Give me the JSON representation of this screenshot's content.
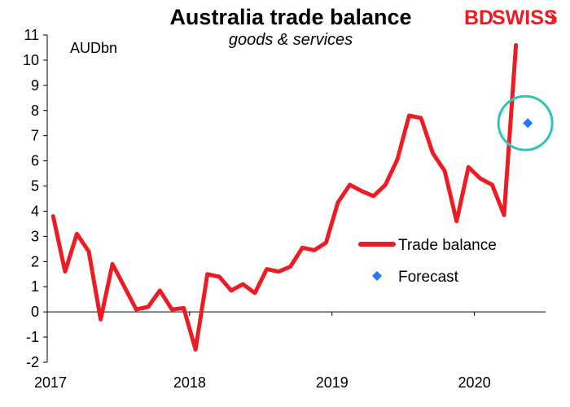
{
  "chart_data": {
    "type": "line",
    "title": "Australia  trade balance",
    "subtitle": "goods & services",
    "unit_label": "AUDbn",
    "xlabel": "",
    "ylabel": "",
    "ylim": [
      -2,
      11
    ],
    "yticks": [
      "11",
      "10",
      "9",
      "8",
      "7",
      "6",
      "5",
      "4",
      "3",
      "2",
      "1",
      "0",
      "-1",
      "-2"
    ],
    "xlim": [
      "2017-01",
      "2020-06"
    ],
    "xtick_labels": [
      "2017",
      "2018",
      "2019",
      "2020"
    ],
    "grid": false,
    "legend_position": "right",
    "series": [
      {
        "name": "Trade balance",
        "color": "#ed1c24",
        "x": [
          "2017-01",
          "2017-02",
          "2017-03",
          "2017-04",
          "2017-05",
          "2017-06",
          "2017-07",
          "2017-08",
          "2017-09",
          "2017-10",
          "2017-11",
          "2017-12",
          "2018-01",
          "2018-02",
          "2018-03",
          "2018-04",
          "2018-05",
          "2018-06",
          "2018-07",
          "2018-08",
          "2018-09",
          "2018-10",
          "2018-11",
          "2018-12",
          "2019-01",
          "2019-02",
          "2019-03",
          "2019-04",
          "2019-05",
          "2019-06",
          "2019-07",
          "2019-08",
          "2019-09",
          "2019-10",
          "2019-11",
          "2019-12",
          "2020-01",
          "2020-02",
          "2020-03"
        ],
        "values": [
          3.8,
          1.6,
          3.1,
          2.4,
          -0.3,
          1.9,
          1.0,
          0.1,
          0.2,
          0.85,
          0.1,
          0.15,
          -1.5,
          1.5,
          1.4,
          0.85,
          1.1,
          0.75,
          1.7,
          1.6,
          1.8,
          2.55,
          2.45,
          2.75,
          4.35,
          5.05,
          4.8,
          4.6,
          5.05,
          6.05,
          7.8,
          7.7,
          6.3,
          5.6,
          3.6,
          5.75,
          5.3,
          5.05,
          3.85
        ]
      },
      {
        "name": "Trade balance",
        "color": "#ed1c24",
        "x": [
          "2020-03",
          "2020-04"
        ],
        "values": [
          3.85,
          10.6
        ],
        "note_continuation": true
      },
      {
        "name": "Forecast",
        "color": "#1f78ff",
        "x": [
          "2020-05"
        ],
        "values": [
          7.5
        ],
        "marker": "diamond"
      }
    ],
    "highlight": {
      "shape": "circle",
      "color": "#2ec4b6",
      "x": "2020-05",
      "y": 7.5
    }
  },
  "logo": {
    "text_bd": "BD",
    "text_swiss": "SWISS",
    "color": "#ed1c24"
  }
}
